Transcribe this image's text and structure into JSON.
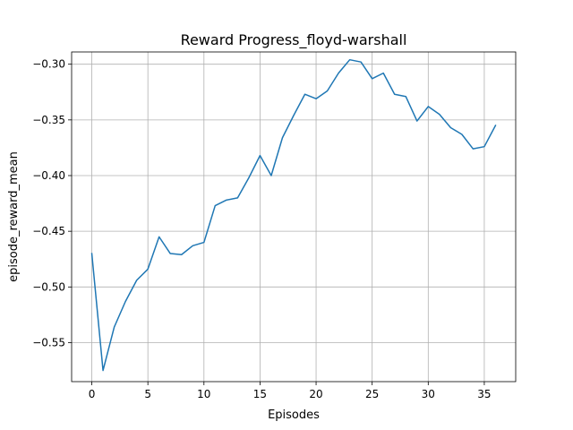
{
  "chart_data": {
    "type": "line",
    "title": "Reward Progress_floyd-warshall",
    "xlabel": "Episodes",
    "ylabel": "episode_reward_mean",
    "xlim": [
      -1.8,
      37.8
    ],
    "ylim": [
      -0.585,
      -0.289
    ],
    "xticks": [
      0,
      5,
      10,
      15,
      20,
      25,
      30,
      35
    ],
    "xtick_labels": [
      "0",
      "5",
      "10",
      "15",
      "20",
      "25",
      "30",
      "35"
    ],
    "yticks": [
      -0.55,
      -0.5,
      -0.45,
      -0.4,
      -0.35,
      -0.3
    ],
    "ytick_labels": [
      "−0.55",
      "−0.50",
      "−0.45",
      "−0.40",
      "−0.35",
      "−0.30"
    ],
    "grid": true,
    "line_color": "#1f77b4",
    "series": [
      {
        "x": [
          0,
          1,
          2,
          3,
          4,
          5,
          6,
          7,
          8,
          9,
          10,
          11,
          12,
          13,
          14,
          15,
          16,
          17,
          18,
          19,
          20,
          21,
          22,
          23,
          24,
          25,
          26,
          27,
          28,
          29,
          30,
          31,
          32,
          33,
          34,
          35,
          36
        ],
        "values": [
          -0.47,
          -0.575,
          -0.536,
          -0.513,
          -0.494,
          -0.484,
          -0.455,
          -0.47,
          -0.471,
          -0.463,
          -0.46,
          -0.427,
          -0.422,
          -0.42,
          -0.402,
          -0.382,
          -0.4,
          -0.366,
          -0.346,
          -0.327,
          -0.331,
          -0.324,
          -0.308,
          -0.296,
          -0.298,
          -0.313,
          -0.308,
          -0.327,
          -0.329,
          -0.351,
          -0.338,
          -0.345,
          -0.357,
          -0.363,
          -0.376,
          -0.374,
          -0.355
        ]
      }
    ]
  }
}
